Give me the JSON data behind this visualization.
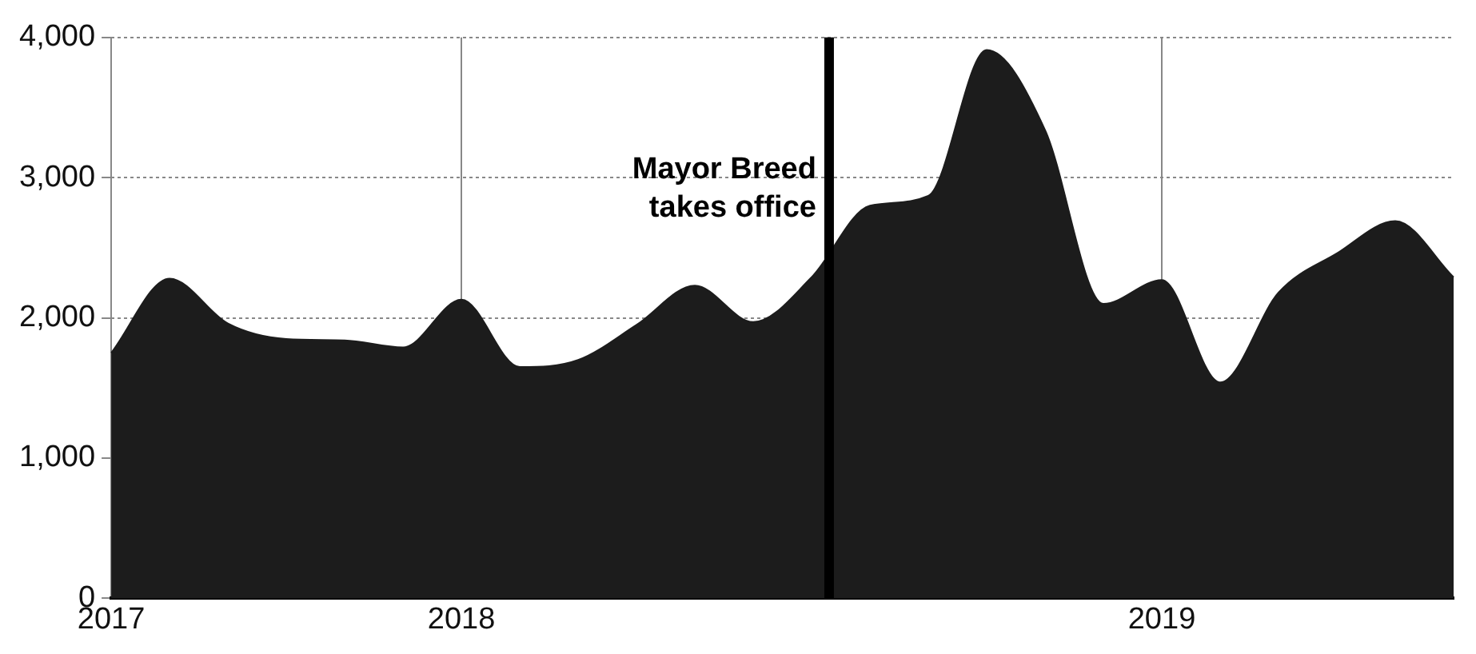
{
  "chart_data": {
    "type": "area",
    "categories": [
      "2017",
      null,
      null,
      null,
      null,
      null,
      "2018",
      null,
      null,
      null,
      null,
      null,
      null,
      null,
      null,
      null,
      null,
      null,
      "2019",
      null,
      null,
      null,
      null,
      null
    ],
    "series": [
      {
        "color": "#1c1c1c",
        "values": [
          1750,
          2280,
          1960,
          1850,
          1840,
          1790,
          2130,
          1650,
          1700,
          1950,
          2230,
          1970,
          2290,
          2800,
          2870,
          3910,
          3340,
          2100,
          2270,
          1540,
          2180,
          2460,
          2690,
          2290
        ]
      }
    ],
    "ylim": [
      0,
      4000
    ],
    "yticks": [
      {
        "value": 0,
        "label": "0"
      },
      {
        "value": 1000,
        "label": "1,000"
      },
      {
        "value": 2000,
        "label": "2,000"
      },
      {
        "value": 3000,
        "label": "3,000"
      },
      {
        "value": 4000,
        "label": "4,000"
      }
    ],
    "grid": true,
    "annotations": [
      "Mayor Breed takes office"
    ]
  }
}
